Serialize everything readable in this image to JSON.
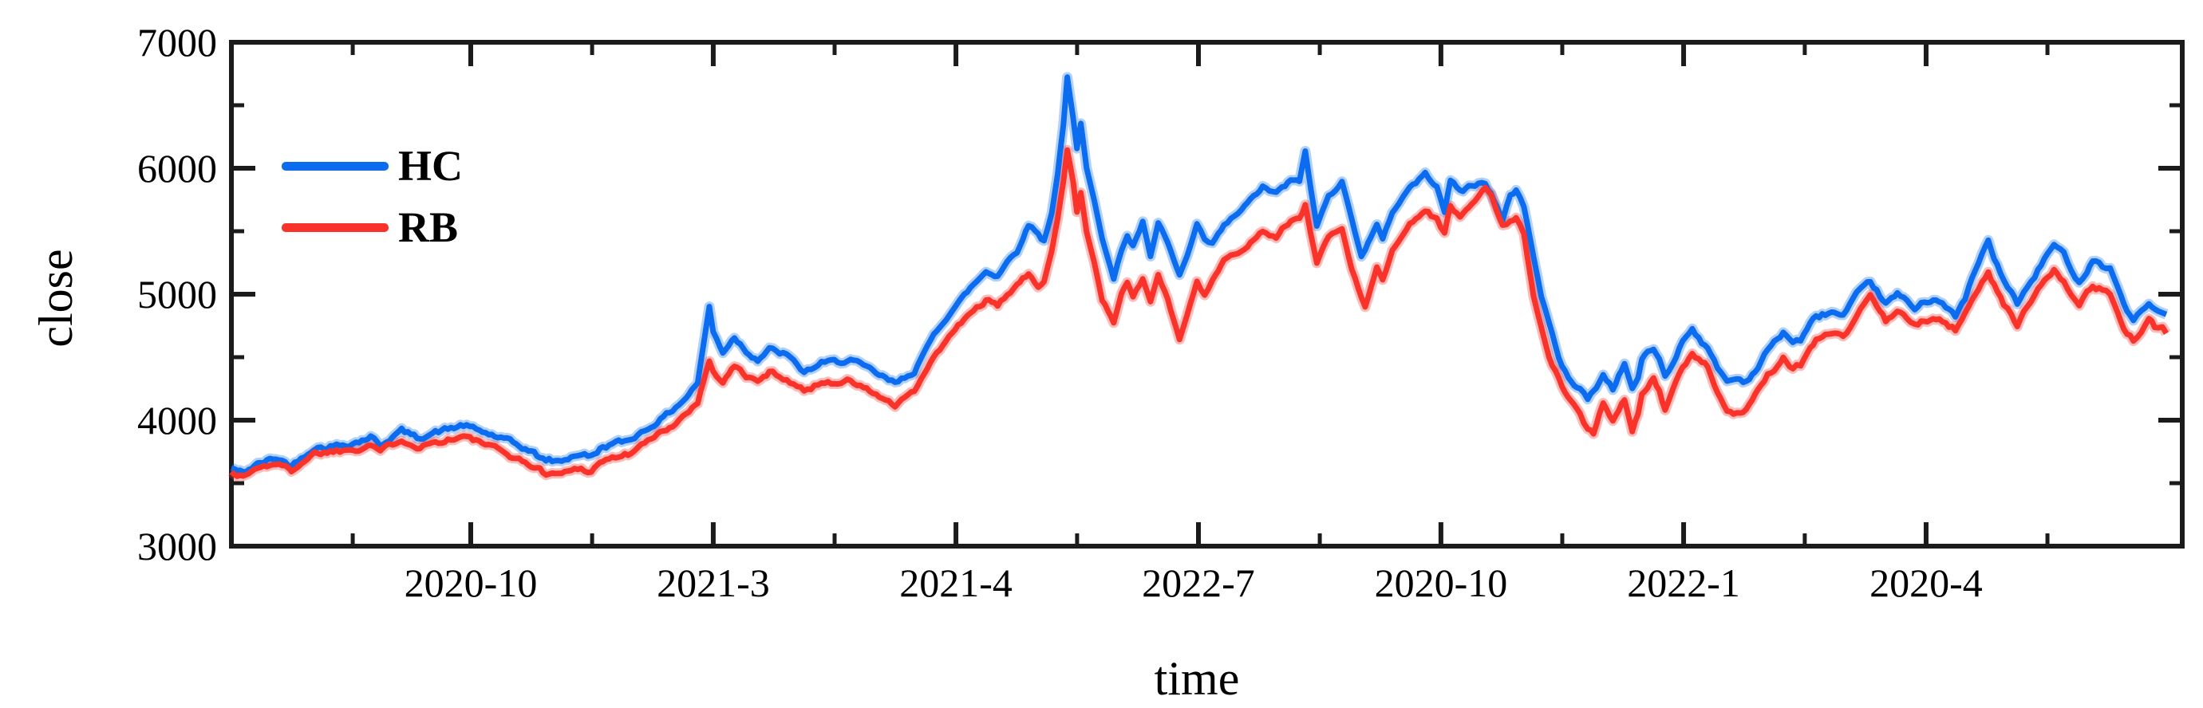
{
  "chart_data": {
    "type": "line",
    "title": "",
    "xlabel": "time",
    "ylabel": "close",
    "ylim": [
      3000,
      7000
    ],
    "grid": false,
    "legend_position": "upper-left",
    "y_major_ticks": [
      {
        "value": 3000,
        "label": "3000"
      },
      {
        "value": 4000,
        "label": "4000"
      },
      {
        "value": 5000,
        "label": "5000"
      },
      {
        "value": 6000,
        "label": "6000"
      },
      {
        "value": 7000,
        "label": "7000"
      }
    ],
    "y_minor_ticks": [
      3500,
      4500,
      5500,
      6500
    ],
    "x_major_ticks": [
      {
        "pos": 0.1227,
        "label": "2020-10"
      },
      {
        "pos": 0.247,
        "label": "2021-3"
      },
      {
        "pos": 0.3714,
        "label": "2021-4"
      },
      {
        "pos": 0.4957,
        "label": "2022-7"
      },
      {
        "pos": 0.62,
        "label": "2020-10"
      },
      {
        "pos": 0.7444,
        "label": "2022-1"
      },
      {
        "pos": 0.8687,
        "label": "2020-4"
      }
    ],
    "x_minor_ticks": [
      0.0622,
      0.1849,
      0.3092,
      0.4335,
      0.5579,
      0.6822,
      0.8065,
      0.9309
    ],
    "axis_color": "#1b1b1b",
    "series": [
      {
        "name": "HC",
        "color": "#0b6cf0"
      },
      {
        "name": "RB",
        "color": "#fa332a"
      }
    ],
    "points": [
      [
        0.0,
        3620,
        3590
      ],
      [
        0.006,
        3580,
        3550
      ],
      [
        0.012,
        3640,
        3610
      ],
      [
        0.023,
        3700,
        3660
      ],
      [
        0.031,
        3640,
        3600
      ],
      [
        0.043,
        3780,
        3740
      ],
      [
        0.056,
        3800,
        3760
      ],
      [
        0.066,
        3830,
        3780
      ],
      [
        0.072,
        3870,
        3810
      ],
      [
        0.077,
        3800,
        3760
      ],
      [
        0.088,
        3920,
        3850
      ],
      [
        0.096,
        3860,
        3790
      ],
      [
        0.107,
        3910,
        3830
      ],
      [
        0.12,
        3960,
        3870
      ],
      [
        0.133,
        3890,
        3800
      ],
      [
        0.144,
        3830,
        3720
      ],
      [
        0.155,
        3750,
        3640
      ],
      [
        0.161,
        3690,
        3590
      ],
      [
        0.169,
        3670,
        3570
      ],
      [
        0.179,
        3730,
        3620
      ],
      [
        0.186,
        3710,
        3600
      ],
      [
        0.192,
        3790,
        3680
      ],
      [
        0.205,
        3840,
        3730
      ],
      [
        0.217,
        3950,
        3850
      ],
      [
        0.228,
        4080,
        3960
      ],
      [
        0.235,
        4180,
        4050
      ],
      [
        0.241,
        4300,
        4150
      ],
      [
        0.247,
        4900,
        4470
      ],
      [
        0.249,
        4700,
        4380
      ],
      [
        0.254,
        4540,
        4310
      ],
      [
        0.26,
        4660,
        4430
      ],
      [
        0.266,
        4550,
        4350
      ],
      [
        0.272,
        4480,
        4300
      ],
      [
        0.278,
        4560,
        4380
      ],
      [
        0.287,
        4520,
        4330
      ],
      [
        0.296,
        4380,
        4230
      ],
      [
        0.305,
        4450,
        4300
      ],
      [
        0.32,
        4480,
        4310
      ],
      [
        0.33,
        4400,
        4230
      ],
      [
        0.338,
        4330,
        4160
      ],
      [
        0.343,
        4290,
        4110
      ],
      [
        0.353,
        4390,
        4230
      ],
      [
        0.363,
        4680,
        4500
      ],
      [
        0.374,
        4900,
        4720
      ],
      [
        0.382,
        5050,
        4850
      ],
      [
        0.39,
        5180,
        4950
      ],
      [
        0.396,
        5150,
        4900
      ],
      [
        0.401,
        5260,
        5000
      ],
      [
        0.406,
        5340,
        5080
      ],
      [
        0.412,
        5550,
        5150
      ],
      [
        0.417,
        5480,
        5060
      ],
      [
        0.42,
        5420,
        5120
      ],
      [
        0.424,
        5650,
        5350
      ],
      [
        0.427,
        5950,
        5600
      ],
      [
        0.43,
        6350,
        5900
      ],
      [
        0.432,
        6720,
        6150
      ],
      [
        0.435,
        6400,
        5900
      ],
      [
        0.437,
        6150,
        5650
      ],
      [
        0.439,
        6350,
        5800
      ],
      [
        0.442,
        6000,
        5500
      ],
      [
        0.446,
        5750,
        5250
      ],
      [
        0.45,
        5450,
        4950
      ],
      [
        0.456,
        5120,
        4780
      ],
      [
        0.46,
        5350,
        5000
      ],
      [
        0.463,
        5470,
        5100
      ],
      [
        0.466,
        5380,
        4980
      ],
      [
        0.471,
        5570,
        5120
      ],
      [
        0.475,
        5300,
        4950
      ],
      [
        0.479,
        5560,
        5150
      ],
      [
        0.484,
        5400,
        4950
      ],
      [
        0.49,
        5150,
        4640
      ],
      [
        0.494,
        5300,
        4850
      ],
      [
        0.499,
        5550,
        5100
      ],
      [
        0.503,
        5420,
        5000
      ],
      [
        0.507,
        5400,
        5120
      ],
      [
        0.513,
        5540,
        5260
      ],
      [
        0.522,
        5670,
        5340
      ],
      [
        0.533,
        5850,
        5500
      ],
      [
        0.54,
        5800,
        5470
      ],
      [
        0.546,
        5880,
        5560
      ],
      [
        0.552,
        5910,
        5600
      ],
      [
        0.555,
        6130,
        5700
      ],
      [
        0.558,
        5820,
        5470
      ],
      [
        0.561,
        5540,
        5260
      ],
      [
        0.567,
        5790,
        5460
      ],
      [
        0.574,
        5890,
        5520
      ],
      [
        0.579,
        5600,
        5200
      ],
      [
        0.584,
        5300,
        4980
      ],
      [
        0.586,
        5360,
        4900
      ],
      [
        0.592,
        5540,
        5220
      ],
      [
        0.595,
        5450,
        5100
      ],
      [
        0.6,
        5650,
        5350
      ],
      [
        0.609,
        5850,
        5560
      ],
      [
        0.617,
        5950,
        5660
      ],
      [
        0.623,
        5870,
        5600
      ],
      [
        0.627,
        5660,
        5480
      ],
      [
        0.63,
        5900,
        5700
      ],
      [
        0.635,
        5820,
        5620
      ],
      [
        0.641,
        5860,
        5700
      ],
      [
        0.648,
        5890,
        5860
      ],
      [
        0.651,
        5800,
        5780
      ],
      [
        0.657,
        5580,
        5540
      ],
      [
        0.661,
        5790,
        5580
      ],
      [
        0.664,
        5830,
        5600
      ],
      [
        0.668,
        5700,
        5480
      ],
      [
        0.673,
        5300,
        4980
      ],
      [
        0.677,
        4980,
        4730
      ],
      [
        0.681,
        4780,
        4490
      ],
      [
        0.686,
        4490,
        4330
      ],
      [
        0.691,
        4330,
        4170
      ],
      [
        0.697,
        4250,
        4040
      ],
      [
        0.701,
        4170,
        3920
      ],
      [
        0.704,
        4230,
        3900
      ],
      [
        0.707,
        4300,
        4050
      ],
      [
        0.709,
        4360,
        4150
      ],
      [
        0.714,
        4250,
        4000
      ],
      [
        0.72,
        4450,
        4170
      ],
      [
        0.724,
        4250,
        3920
      ],
      [
        0.727,
        4330,
        4060
      ],
      [
        0.729,
        4490,
        4210
      ],
      [
        0.735,
        4570,
        4330
      ],
      [
        0.738,
        4480,
        4230
      ],
      [
        0.741,
        4350,
        4080
      ],
      [
        0.745,
        4450,
        4250
      ],
      [
        0.75,
        4630,
        4410
      ],
      [
        0.755,
        4730,
        4510
      ],
      [
        0.76,
        4620,
        4470
      ],
      [
        0.763,
        4560,
        4420
      ],
      [
        0.768,
        4420,
        4220
      ],
      [
        0.773,
        4310,
        4090
      ],
      [
        0.778,
        4330,
        4050
      ],
      [
        0.783,
        4310,
        4080
      ],
      [
        0.789,
        4420,
        4230
      ],
      [
        0.794,
        4560,
        4360
      ],
      [
        0.799,
        4640,
        4430
      ],
      [
        0.802,
        4700,
        4500
      ],
      [
        0.807,
        4620,
        4410
      ],
      [
        0.811,
        4640,
        4440
      ],
      [
        0.816,
        4760,
        4570
      ],
      [
        0.819,
        4820,
        4640
      ],
      [
        0.827,
        4860,
        4700
      ],
      [
        0.833,
        4820,
        4650
      ],
      [
        0.84,
        5000,
        4830
      ],
      [
        0.844,
        5050,
        4930
      ],
      [
        0.847,
        5100,
        5000
      ],
      [
        0.852,
        4990,
        4860
      ],
      [
        0.855,
        4920,
        4790
      ],
      [
        0.861,
        5000,
        4860
      ],
      [
        0.866,
        4940,
        4800
      ],
      [
        0.87,
        4890,
        4750
      ],
      [
        0.875,
        4950,
        4790
      ],
      [
        0.881,
        4960,
        4810
      ],
      [
        0.886,
        4890,
        4760
      ],
      [
        0.891,
        4830,
        4720
      ],
      [
        0.896,
        4960,
        4840
      ],
      [
        0.898,
        5060,
        4890
      ],
      [
        0.903,
        5250,
        5050
      ],
      [
        0.908,
        5430,
        5170
      ],
      [
        0.911,
        5280,
        5070
      ],
      [
        0.916,
        5110,
        4920
      ],
      [
        0.92,
        5020,
        4840
      ],
      [
        0.923,
        4920,
        4750
      ],
      [
        0.928,
        5050,
        4900
      ],
      [
        0.932,
        5140,
        5000
      ],
      [
        0.937,
        5280,
        5120
      ],
      [
        0.942,
        5390,
        5200
      ],
      [
        0.947,
        5320,
        5110
      ],
      [
        0.951,
        5200,
        5000
      ],
      [
        0.955,
        5090,
        4920
      ],
      [
        0.959,
        5190,
        5010
      ],
      [
        0.962,
        5280,
        5070
      ],
      [
        0.967,
        5230,
        5030
      ],
      [
        0.971,
        5200,
        5000
      ],
      [
        0.975,
        5060,
        4850
      ],
      [
        0.978,
        4920,
        4720
      ],
      [
        0.983,
        4790,
        4640
      ],
      [
        0.987,
        4860,
        4700
      ],
      [
        0.991,
        4920,
        4790
      ],
      [
        0.994,
        4880,
        4740
      ],
      [
        0.998,
        4870,
        4730
      ],
      [
        1.0,
        4840,
        4700
      ]
    ]
  },
  "legend": {
    "hc_label": "HC",
    "rb_label": "RB"
  }
}
